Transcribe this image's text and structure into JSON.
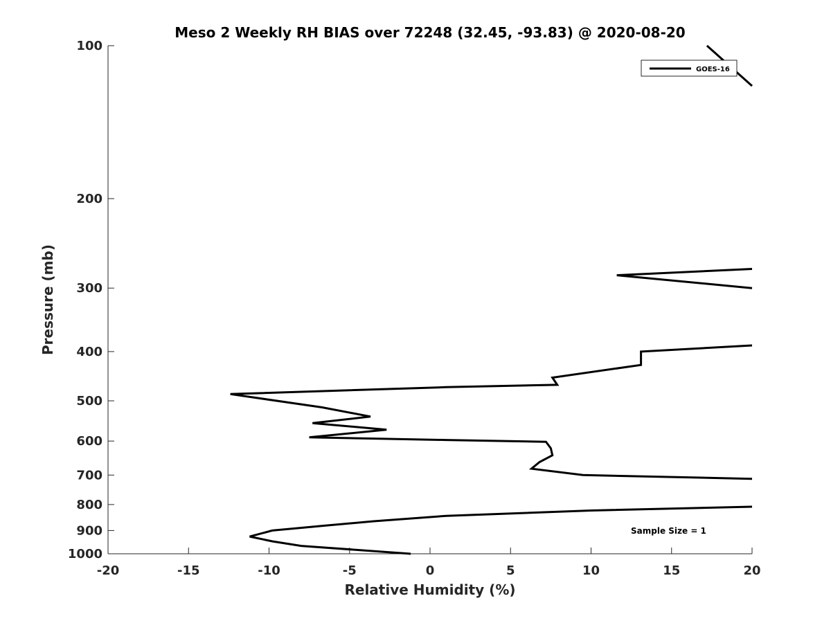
{
  "chart_data": {
    "type": "line",
    "title": "Meso 2 Weekly RH BIAS over 72248 (32.45, -93.83) @ 2020-08-20",
    "xlabel": "Relative Humidity (%)",
    "ylabel": "Pressure (mb)",
    "xlim": [
      -20,
      20
    ],
    "ylim": [
      100,
      1000
    ],
    "y_scale": "log",
    "y_reversed": true,
    "x_ticks": [
      "-20",
      "-15",
      "-10",
      "-5",
      "0",
      "5",
      "10",
      "15",
      "20"
    ],
    "y_ticks": [
      "100",
      "200",
      "300",
      "400",
      "500",
      "600",
      "700",
      "800",
      "900",
      "1000"
    ],
    "grid": false,
    "legend": {
      "position": "top-right",
      "entries": [
        "GOES-16"
      ]
    },
    "annotation": "Sample Size = 1",
    "series": [
      {
        "name": "GOES-16",
        "color": "#000000",
        "segments": [
          [
            {
              "x": 17.2,
              "y": 100
            },
            {
              "x": 20.0,
              "y": 120
            }
          ],
          [
            {
              "x": 20.0,
              "y": 275
            },
            {
              "x": 11.6,
              "y": 283
            },
            {
              "x": 20.0,
              "y": 300
            }
          ],
          [
            {
              "x": 20.0,
              "y": 389
            },
            {
              "x": 13.1,
              "y": 400
            },
            {
              "x": 13.1,
              "y": 425
            },
            {
              "x": 7.6,
              "y": 450
            },
            {
              "x": 7.9,
              "y": 465
            },
            {
              "x": 1.0,
              "y": 470
            },
            {
              "x": -12.4,
              "y": 485
            },
            {
              "x": -6.7,
              "y": 515
            },
            {
              "x": -3.7,
              "y": 537
            },
            {
              "x": -7.3,
              "y": 553
            },
            {
              "x": -2.7,
              "y": 570
            },
            {
              "x": -7.5,
              "y": 590
            },
            {
              "x": 1.0,
              "y": 597
            },
            {
              "x": 7.2,
              "y": 602
            },
            {
              "x": 7.5,
              "y": 620
            },
            {
              "x": 7.6,
              "y": 640
            },
            {
              "x": 6.8,
              "y": 660
            },
            {
              "x": 6.3,
              "y": 680
            },
            {
              "x": 9.5,
              "y": 700
            },
            {
              "x": 20.0,
              "y": 712
            }
          ],
          [
            {
              "x": 20.0,
              "y": 808
            },
            {
              "x": 10.0,
              "y": 822
            },
            {
              "x": 1.0,
              "y": 842
            },
            {
              "x": -3.5,
              "y": 863
            },
            {
              "x": -6.5,
              "y": 880
            },
            {
              "x": -9.8,
              "y": 900
            },
            {
              "x": -11.2,
              "y": 925
            },
            {
              "x": -9.8,
              "y": 945
            },
            {
              "x": -8.0,
              "y": 965
            },
            {
              "x": -1.2,
              "y": 1000
            }
          ]
        ]
      }
    ]
  }
}
